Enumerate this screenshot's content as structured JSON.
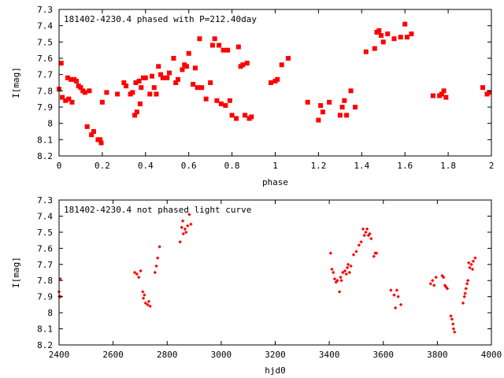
{
  "chart_data": [
    {
      "type": "scatter",
      "title": "181402-4230.4 phased with P=212.40day",
      "xlabel": "phase",
      "ylabel": "I[mag]",
      "xlim": [
        0,
        2
      ],
      "ylim": [
        7.3,
        8.2
      ],
      "y_inverted": true,
      "x_ticks": [
        0,
        0.2,
        0.4,
        0.6,
        0.8,
        1,
        1.2,
        1.4,
        1.6,
        1.8,
        2
      ],
      "x_tick_labels": [
        "0",
        "0.2",
        "0.4",
        "0.6",
        "0.8",
        "1",
        "1.2",
        "1.4",
        "1.6",
        "1.8",
        "2"
      ],
      "y_ticks": [
        7.3,
        7.4,
        7.5,
        7.6,
        7.7,
        7.8,
        7.9,
        8.0,
        8.1,
        8.2
      ],
      "y_tick_labels": [
        "7.3",
        "7.4",
        "7.5",
        "7.6",
        "7.7",
        "7.8",
        "7.9",
        "8",
        "8.1",
        "8.2"
      ],
      "grid": false,
      "marker_color": "#ff0000",
      "marker": "filled-square",
      "points": [
        [
          0.0,
          7.79
        ],
        [
          0.01,
          7.63
        ],
        [
          0.015,
          7.84
        ],
        [
          0.03,
          7.86
        ],
        [
          0.04,
          7.72
        ],
        [
          0.045,
          7.85
        ],
        [
          0.055,
          7.73
        ],
        [
          0.06,
          7.87
        ],
        [
          0.07,
          7.73
        ],
        [
          0.08,
          7.74
        ],
        [
          0.09,
          7.77
        ],
        [
          0.1,
          7.78
        ],
        [
          0.11,
          7.8
        ],
        [
          0.12,
          7.81
        ],
        [
          0.13,
          8.02
        ],
        [
          0.14,
          7.8
        ],
        [
          0.15,
          8.07
        ],
        [
          0.16,
          8.05
        ],
        [
          0.18,
          8.1
        ],
        [
          0.19,
          8.1
        ],
        [
          0.195,
          8.12
        ],
        [
          0.2,
          7.87
        ],
        [
          0.22,
          7.81
        ],
        [
          0.27,
          7.82
        ],
        [
          0.3,
          7.75
        ],
        [
          0.31,
          7.77
        ],
        [
          0.33,
          7.82
        ],
        [
          0.34,
          7.81
        ],
        [
          0.35,
          7.95
        ],
        [
          0.355,
          7.75
        ],
        [
          0.36,
          7.93
        ],
        [
          0.37,
          7.74
        ],
        [
          0.375,
          7.88
        ],
        [
          0.38,
          7.78
        ],
        [
          0.39,
          7.72
        ],
        [
          0.4,
          7.72
        ],
        [
          0.42,
          7.82
        ],
        [
          0.43,
          7.71
        ],
        [
          0.44,
          7.78
        ],
        [
          0.45,
          7.82
        ],
        [
          0.46,
          7.65
        ],
        [
          0.47,
          7.7
        ],
        [
          0.48,
          7.72
        ],
        [
          0.5,
          7.72
        ],
        [
          0.51,
          7.69
        ],
        [
          0.53,
          7.6
        ],
        [
          0.54,
          7.75
        ],
        [
          0.55,
          7.73
        ],
        [
          0.57,
          7.67
        ],
        [
          0.58,
          7.64
        ],
        [
          0.59,
          7.65
        ],
        [
          0.6,
          7.57
        ],
        [
          0.62,
          7.76
        ],
        [
          0.63,
          7.66
        ],
        [
          0.64,
          7.78
        ],
        [
          0.65,
          7.48
        ],
        [
          0.66,
          7.78
        ],
        [
          0.68,
          7.85
        ],
        [
          0.7,
          7.75
        ],
        [
          0.71,
          7.52
        ],
        [
          0.72,
          7.48
        ],
        [
          0.73,
          7.86
        ],
        [
          0.74,
          7.52
        ],
        [
          0.75,
          7.88
        ],
        [
          0.76,
          7.55
        ],
        [
          0.77,
          7.89
        ],
        [
          0.78,
          7.55
        ],
        [
          0.79,
          7.86
        ],
        [
          0.8,
          7.95
        ],
        [
          0.82,
          7.97
        ],
        [
          0.83,
          7.53
        ],
        [
          0.84,
          7.65
        ],
        [
          0.85,
          7.64
        ],
        [
          0.86,
          7.95
        ],
        [
          0.87,
          7.63
        ],
        [
          0.88,
          7.97
        ],
        [
          0.89,
          7.96
        ],
        [
          0.98,
          7.75
        ],
        [
          1.0,
          7.74
        ],
        [
          1.01,
          7.73
        ],
        [
          1.03,
          7.64
        ],
        [
          1.06,
          7.6
        ],
        [
          1.15,
          7.87
        ],
        [
          1.2,
          7.98
        ],
        [
          1.21,
          7.89
        ],
        [
          1.22,
          7.93
        ],
        [
          1.25,
          7.87
        ],
        [
          1.3,
          7.95
        ],
        [
          1.31,
          7.9
        ],
        [
          1.32,
          7.86
        ],
        [
          1.33,
          7.95
        ],
        [
          1.35,
          7.8
        ],
        [
          1.37,
          7.9
        ],
        [
          1.42,
          7.56
        ],
        [
          1.46,
          7.54
        ],
        [
          1.47,
          7.44
        ],
        [
          1.48,
          7.43
        ],
        [
          1.49,
          7.46
        ],
        [
          1.5,
          7.5
        ],
        [
          1.52,
          7.45
        ],
        [
          1.55,
          7.48
        ],
        [
          1.58,
          7.47
        ],
        [
          1.6,
          7.39
        ],
        [
          1.61,
          7.47
        ],
        [
          1.63,
          7.45
        ],
        [
          1.73,
          7.83
        ],
        [
          1.76,
          7.83
        ],
        [
          1.77,
          7.82
        ],
        [
          1.78,
          7.8
        ],
        [
          1.79,
          7.84
        ],
        [
          1.96,
          7.78
        ],
        [
          1.98,
          7.82
        ],
        [
          1.99,
          7.81
        ]
      ]
    },
    {
      "type": "scatter",
      "title": "181402-4230.4 not phased light curve",
      "xlabel": "hjd0",
      "ylabel": "I[mag]",
      "xlim": [
        2400,
        4000
      ],
      "ylim": [
        7.3,
        8.2
      ],
      "y_inverted": true,
      "x_ticks": [
        2400,
        2600,
        2800,
        3000,
        3200,
        3400,
        3600,
        3800,
        4000
      ],
      "x_tick_labels": [
        "2400",
        "2600",
        "2800",
        "3000",
        "3200",
        "3400",
        "3600",
        "3800",
        "4000"
      ],
      "y_ticks": [
        7.3,
        7.4,
        7.5,
        7.6,
        7.7,
        7.8,
        7.9,
        8.0,
        8.1,
        8.2
      ],
      "y_tick_labels": [
        "7.3",
        "7.4",
        "7.5",
        "7.6",
        "7.7",
        "7.8",
        "7.9",
        "8",
        "8.1",
        "8.2"
      ],
      "grid": false,
      "marker_color": "#ff0000",
      "marker": "small-diamond",
      "points": [
        [
          2400,
          7.87
        ],
        [
          2401,
          7.9
        ],
        [
          2403,
          7.9
        ],
        [
          2405,
          7.79
        ],
        [
          2406,
          7.9
        ],
        [
          2680,
          7.75
        ],
        [
          2688,
          7.76
        ],
        [
          2695,
          7.78
        ],
        [
          2702,
          7.74
        ],
        [
          2710,
          7.87
        ],
        [
          2712,
          7.91
        ],
        [
          2716,
          7.89
        ],
        [
          2720,
          7.94
        ],
        [
          2728,
          7.95
        ],
        [
          2732,
          7.93
        ],
        [
          2737,
          7.96
        ],
        [
          2755,
          7.75
        ],
        [
          2760,
          7.71
        ],
        [
          2765,
          7.66
        ],
        [
          2772,
          7.59
        ],
        [
          2848,
          7.56
        ],
        [
          2854,
          7.47
        ],
        [
          2858,
          7.43
        ],
        [
          2860,
          7.51
        ],
        [
          2866,
          7.48
        ],
        [
          2870,
          7.5
        ],
        [
          2876,
          7.46
        ],
        [
          2882,
          7.39
        ],
        [
          2888,
          7.45
        ],
        [
          3405,
          7.63
        ],
        [
          3410,
          7.73
        ],
        [
          3415,
          7.75
        ],
        [
          3420,
          7.79
        ],
        [
          3425,
          7.81
        ],
        [
          3430,
          7.8
        ],
        [
          3438,
          7.87
        ],
        [
          3442,
          7.78
        ],
        [
          3445,
          7.8
        ],
        [
          3450,
          7.75
        ],
        [
          3458,
          7.74
        ],
        [
          3463,
          7.76
        ],
        [
          3467,
          7.72
        ],
        [
          3470,
          7.7
        ],
        [
          3475,
          7.75
        ],
        [
          3480,
          7.71
        ],
        [
          3490,
          7.64
        ],
        [
          3500,
          7.62
        ],
        [
          3510,
          7.58
        ],
        [
          3518,
          7.56
        ],
        [
          3525,
          7.48
        ],
        [
          3530,
          7.52
        ],
        [
          3535,
          7.5
        ],
        [
          3540,
          7.48
        ],
        [
          3545,
          7.52
        ],
        [
          3550,
          7.51
        ],
        [
          3555,
          7.54
        ],
        [
          3565,
          7.65
        ],
        [
          3570,
          7.63
        ],
        [
          3575,
          7.63
        ],
        [
          3628,
          7.86
        ],
        [
          3640,
          7.89
        ],
        [
          3645,
          7.97
        ],
        [
          3650,
          7.86
        ],
        [
          3655,
          7.9
        ],
        [
          3665,
          7.95
        ],
        [
          3775,
          7.82
        ],
        [
          3782,
          7.8
        ],
        [
          3788,
          7.83
        ],
        [
          3795,
          7.78
        ],
        [
          3818,
          7.77
        ],
        [
          3823,
          7.78
        ],
        [
          3828,
          7.83
        ],
        [
          3832,
          7.84
        ],
        [
          3837,
          7.85
        ],
        [
          3850,
          8.02
        ],
        [
          3854,
          8.04
        ],
        [
          3858,
          8.07
        ],
        [
          3860,
          8.1
        ],
        [
          3864,
          8.12
        ],
        [
          3895,
          7.94
        ],
        [
          3900,
          7.9
        ],
        [
          3903,
          7.88
        ],
        [
          3906,
          7.85
        ],
        [
          3910,
          7.82
        ],
        [
          3913,
          7.8
        ],
        [
          3916,
          7.69
        ],
        [
          3920,
          7.72
        ],
        [
          3926,
          7.7
        ],
        [
          3930,
          7.73
        ],
        [
          3933,
          7.68
        ],
        [
          3940,
          7.66
        ]
      ]
    }
  ]
}
